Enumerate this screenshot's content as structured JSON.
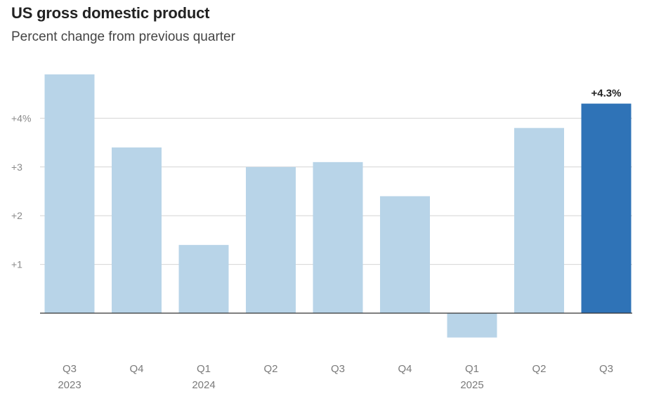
{
  "title": "US gross domestic product",
  "subtitle": "Percent change from previous quarter",
  "colors": {
    "bar": "#b8d4e8",
    "highlight": "#2f73b7",
    "grid": "#d4d4d4",
    "zero": "#333333"
  },
  "chart_data": {
    "type": "bar",
    "categories": [
      "Q3 2023",
      "Q4 2023",
      "Q1 2024",
      "Q2 2024",
      "Q3 2024",
      "Q4 2024",
      "Q1 2025",
      "Q2 2025",
      "Q3 2025"
    ],
    "tick_labels": [
      [
        "Q3",
        "2023"
      ],
      [
        "Q4",
        ""
      ],
      [
        "Q1",
        "2024"
      ],
      [
        "Q2",
        ""
      ],
      [
        "Q3",
        ""
      ],
      [
        "Q4",
        ""
      ],
      [
        "Q1",
        "2025"
      ],
      [
        "Q2",
        ""
      ],
      [
        "Q3",
        ""
      ]
    ],
    "values": [
      4.9,
      3.4,
      1.4,
      3.0,
      3.1,
      2.4,
      -0.5,
      3.8,
      4.3
    ],
    "highlight_index": 8,
    "data_labels": [
      {
        "index": 8,
        "text": "+4.3%"
      }
    ],
    "yticks": [
      {
        "value": 1,
        "label": "+1"
      },
      {
        "value": 2,
        "label": "+2"
      },
      {
        "value": 3,
        "label": "+3"
      },
      {
        "value": 4,
        "label": "+4%"
      }
    ],
    "ylim": [
      -0.5,
      5.0
    ],
    "grid": true,
    "xlabel": "",
    "ylabel": ""
  }
}
